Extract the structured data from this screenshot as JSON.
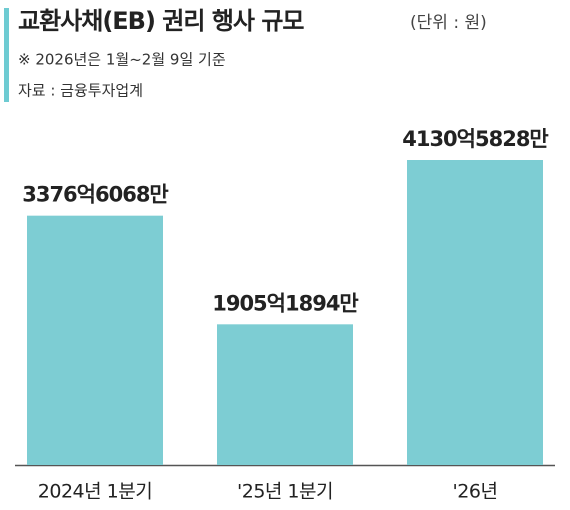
{
  "chart_data": {
    "type": "bar",
    "title": "교환사채(EB) 권리 행사 규모",
    "unit": "(단위 : 원)",
    "note": "※ 2026년은 1월~2월 9일 기준",
    "source": "자료 : 금융투자업계",
    "categories": [
      "2024년 1분기",
      "'25년 1분기",
      "'26년"
    ],
    "values": [
      337660680000,
      190518940000,
      413058280000
    ],
    "value_labels": [
      "3376억6068만",
      "1905억1894만",
      "4130억5828만"
    ],
    "color": "#7dcdd3"
  }
}
